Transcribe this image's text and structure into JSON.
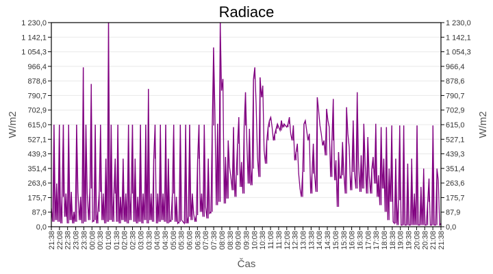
{
  "chart_data": {
    "type": "line",
    "title": "Radiace",
    "xlabel": "Čas",
    "ylabel": "W/m2",
    "ylabel_right": "W/m2",
    "ylim": [
      0,
      1230
    ],
    "grid": true,
    "legend": null,
    "series_color": "#800080",
    "yticks": [
      "0,0",
      "87,9",
      "175,7",
      "263,6",
      "351,4",
      "439,3",
      "527,1",
      "615,0",
      "702,9",
      "790,7",
      "878,6",
      "966,4",
      "1 054,3",
      "1 142,1",
      "1 230,0"
    ],
    "ytick_values": [
      0,
      87.9,
      175.7,
      263.6,
      351.4,
      439.3,
      527.1,
      615.0,
      702.9,
      790.7,
      878.6,
      966.4,
      1054.3,
      1142.1,
      1230.0
    ],
    "xticks": [
      "21:38",
      "22:08",
      "22:38",
      "23:08",
      "23:38",
      "00:08",
      "00:38",
      "01:08",
      "01:38",
      "02:08",
      "02:38",
      "03:08",
      "03:38",
      "04:08",
      "04:38",
      "05:08",
      "05:38",
      "06:08",
      "06:38",
      "07:08",
      "07:38",
      "08:08",
      "08:38",
      "09:08",
      "09:38",
      "10:08",
      "10:38",
      "11:08",
      "11:38",
      "12:08",
      "12:38",
      "13:08",
      "13:38",
      "14:08",
      "14:38",
      "15:08",
      "15:38",
      "16:08",
      "16:38",
      "17:08",
      "17:38",
      "18:08",
      "18:38",
      "19:08",
      "19:38",
      "20:08",
      "20:38",
      "21:08",
      "21:38"
    ],
    "series": [
      {
        "name": "Radiace",
        "samples_per_tick": 6,
        "values": [
          110,
          30,
          615,
          40,
          260,
          30,
          615,
          20,
          180,
          615,
          60,
          200,
          20,
          615,
          40,
          210,
          20,
          90,
          30,
          615,
          210,
          40,
          180,
          20,
          960,
          30,
          615,
          200,
          40,
          230,
          860,
          30,
          40,
          615,
          20,
          90,
          210,
          615,
          40,
          200,
          20,
          410,
          30,
          1230,
          40,
          615,
          30,
          200,
          410,
          30,
          615,
          20,
          180,
          40,
          410,
          30,
          200,
          20,
          615,
          40,
          200,
          615,
          30,
          410,
          20,
          180,
          30,
          615,
          20,
          200,
          40,
          615,
          20,
          830,
          40,
          200,
          30,
          410,
          615,
          20,
          200,
          30,
          615,
          40,
          200,
          30,
          615,
          20,
          410,
          30,
          40,
          200,
          615,
          30,
          180,
          20,
          30,
          615,
          40,
          30,
          20,
          615,
          20,
          60,
          615,
          40,
          200,
          80,
          30,
          70,
          410,
          615,
          90,
          200,
          60,
          615,
          120,
          50,
          410,
          80,
          90,
          610,
          1080,
          700,
          130,
          620,
          150,
          1230,
          820,
          890,
          140,
          420,
          170,
          520,
          360,
          300,
          220,
          600,
          180,
          310,
          500,
          660,
          240,
          390,
          200,
          610,
          810,
          520,
          260,
          590,
          250,
          350,
          890,
          960,
          740,
          420,
          300,
          900,
          780,
          850,
          460,
          380,
          520,
          600,
          640,
          660,
          600,
          520,
          560,
          590,
          620,
          600,
          580,
          640,
          600,
          620,
          610,
          600,
          620,
          660,
          560,
          520,
          610,
          400,
          450,
          500,
          320,
          230,
          180,
          330,
          620,
          640,
          580,
          520,
          560,
          200,
          320,
          500,
          310,
          210,
          780,
          700,
          610,
          560,
          490,
          520,
          430,
          710,
          640,
          600,
          300,
          520,
          770,
          280,
          400,
          120,
          450,
          290,
          310,
          510,
          320,
          200,
          720,
          560,
          480,
          220,
          330,
          640,
          320,
          230,
          810,
          390,
          210,
          430,
          230,
          620,
          380,
          200,
          540,
          310,
          200,
          350,
          420,
          260,
          620,
          180,
          310,
          130,
          600,
          230,
          410,
          90,
          600,
          40,
          350,
          150,
          610,
          30,
          20,
          410,
          10,
          160,
          610,
          10,
          10,
          610,
          10,
          10,
          380,
          10,
          10,
          410,
          10,
          200,
          10,
          610,
          10,
          10,
          240,
          10,
          350,
          10,
          10,
          150,
          290,
          10,
          10,
          610,
          10,
          10,
          350,
          280,
          10,
          20
        ]
      }
    ]
  }
}
